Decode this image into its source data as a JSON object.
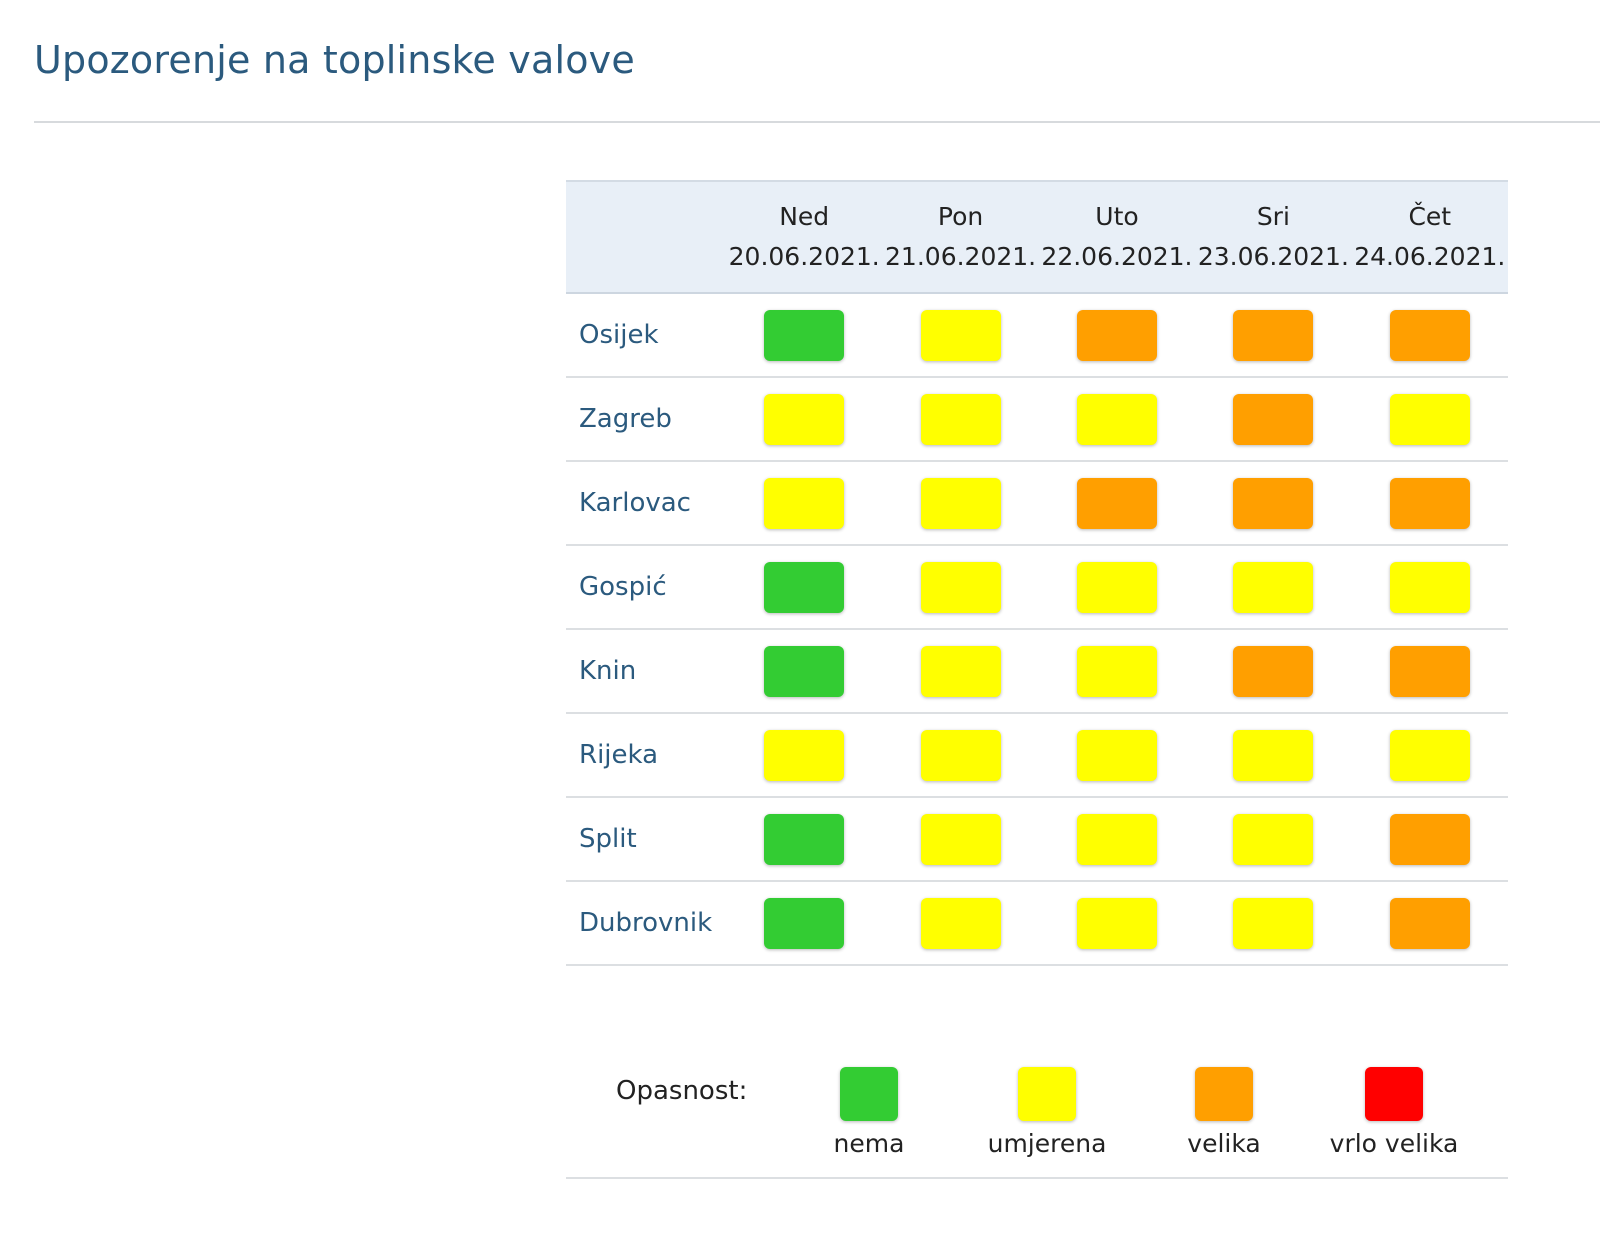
{
  "page": {
    "title": "Upozorenje na toplinske valove"
  },
  "colors": {
    "nema": "#33cc33",
    "umjerena": "#ffff00",
    "velika": "#ff9f00",
    "vrlo_velika": "#ff0000",
    "title": "#2b5a7e",
    "header_bg": "#e8eff7"
  },
  "table": {
    "days": [
      {
        "name": "Ned",
        "date": "20.06.2021."
      },
      {
        "name": "Pon",
        "date": "21.06.2021."
      },
      {
        "name": "Uto",
        "date": "22.06.2021."
      },
      {
        "name": "Sri",
        "date": "23.06.2021."
      },
      {
        "name": "Čet",
        "date": "24.06.2021."
      }
    ],
    "rows": [
      {
        "city": "Osijek",
        "levels": [
          "nema",
          "umjerena",
          "velika",
          "velika",
          "velika"
        ]
      },
      {
        "city": "Zagreb",
        "levels": [
          "umjerena",
          "umjerena",
          "umjerena",
          "velika",
          "umjerena"
        ]
      },
      {
        "city": "Karlovac",
        "levels": [
          "umjerena",
          "umjerena",
          "velika",
          "velika",
          "velika"
        ]
      },
      {
        "city": "Gospić",
        "levels": [
          "nema",
          "umjerena",
          "umjerena",
          "umjerena",
          "umjerena"
        ]
      },
      {
        "city": "Knin",
        "levels": [
          "nema",
          "umjerena",
          "umjerena",
          "velika",
          "velika"
        ]
      },
      {
        "city": "Rijeka",
        "levels": [
          "umjerena",
          "umjerena",
          "umjerena",
          "umjerena",
          "umjerena"
        ]
      },
      {
        "city": "Split",
        "levels": [
          "nema",
          "umjerena",
          "umjerena",
          "umjerena",
          "velika"
        ]
      },
      {
        "city": "Dubrovnik",
        "levels": [
          "nema",
          "umjerena",
          "umjerena",
          "umjerena",
          "velika"
        ]
      }
    ]
  },
  "legend": {
    "label": "Opasnost:",
    "items": [
      {
        "key": "nema",
        "label": "nema"
      },
      {
        "key": "umjerena",
        "label": "umjerena"
      },
      {
        "key": "velika",
        "label": "velika"
      },
      {
        "key": "vrlo_velika",
        "label": "vrlo velika"
      }
    ]
  }
}
